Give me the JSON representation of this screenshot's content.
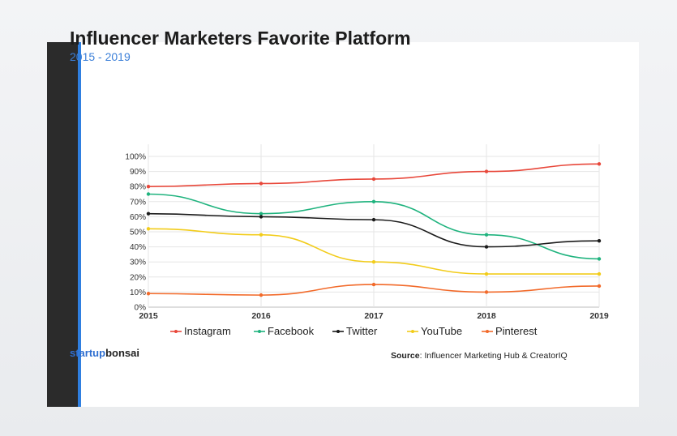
{
  "chart_data": {
    "type": "line",
    "title": "Influencer Marketers Favorite Platform",
    "subtitle": "2015 - 2019",
    "x": [
      "2015",
      "2016",
      "2017",
      "2018",
      "2019"
    ],
    "y_ticks": [
      "0%",
      "10%",
      "20%",
      "30%",
      "40%",
      "50%",
      "60%",
      "70%",
      "80%",
      "90%",
      "100%"
    ],
    "ylim": [
      0,
      100
    ],
    "grid": true,
    "legend_position": "bottom",
    "series": [
      {
        "name": "Instagram",
        "color": "#e8473a",
        "values": [
          80,
          82,
          85,
          90,
          95
        ]
      },
      {
        "name": "Facebook",
        "color": "#1fb37e",
        "values": [
          75,
          62,
          70,
          48,
          32
        ]
      },
      {
        "name": "Twitter",
        "color": "#1a1a1a",
        "values": [
          62,
          60,
          58,
          40,
          44
        ]
      },
      {
        "name": "YouTube",
        "color": "#f2cc1a",
        "values": [
          52,
          48,
          30,
          22,
          22
        ]
      },
      {
        "name": "Pinterest",
        "color": "#f26a2a",
        "values": [
          9,
          8,
          15,
          10,
          14
        ]
      }
    ]
  },
  "footer": {
    "brand_part1": "startup",
    "brand_part2": "bonsai",
    "source_label": "Source",
    "source_text": ": Influencer Marketing Hub & CreatorIQ"
  }
}
